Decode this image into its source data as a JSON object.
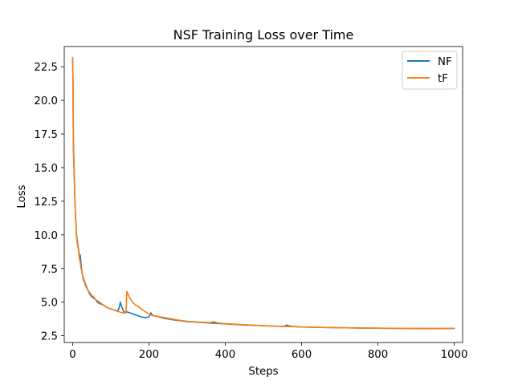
{
  "chart_data": {
    "type": "line",
    "title": "NSF Training Loss over Time",
    "xlabel": "Steps",
    "ylabel": "Loss",
    "xlim": [
      -22,
      1022
    ],
    "ylim": [
      2.0,
      24.0
    ],
    "x_ticks": [
      0,
      200,
      400,
      600,
      800,
      1000
    ],
    "y_ticks": [
      2.5,
      5.0,
      7.5,
      10.0,
      12.5,
      15.0,
      17.5,
      20.0,
      22.5
    ],
    "y_tick_labels": [
      "2.5",
      "5.0",
      "7.5",
      "10.0",
      "12.5",
      "15.0",
      "17.5",
      "20.0",
      "22.5"
    ],
    "grid": false,
    "legend_position": "top-right",
    "series": [
      {
        "name": "NF",
        "color": "#1f77b4",
        "points": [
          [
            0,
            23.1
          ],
          [
            1,
            21.0
          ],
          [
            2,
            16.4
          ],
          [
            4,
            14.5
          ],
          [
            6,
            12.5
          ],
          [
            8,
            11.2
          ],
          [
            10,
            10.1
          ],
          [
            12,
            9.6
          ],
          [
            15,
            9.0
          ],
          [
            18,
            8.4
          ],
          [
            20,
            8.5
          ],
          [
            22,
            7.8
          ],
          [
            25,
            7.1
          ],
          [
            28,
            6.8
          ],
          [
            32,
            6.4
          ],
          [
            36,
            6.1
          ],
          [
            40,
            5.9
          ],
          [
            45,
            5.6
          ],
          [
            50,
            5.4
          ],
          [
            55,
            5.3
          ],
          [
            60,
            5.2
          ],
          [
            65,
            5.0
          ],
          [
            70,
            4.9
          ],
          [
            80,
            4.8
          ],
          [
            90,
            4.6
          ],
          [
            100,
            4.5
          ],
          [
            110,
            4.4
          ],
          [
            118,
            4.3
          ],
          [
            122,
            4.6
          ],
          [
            125,
            5.0
          ],
          [
            128,
            4.7
          ],
          [
            132,
            4.4
          ],
          [
            136,
            4.2
          ],
          [
            140,
            4.3
          ],
          [
            150,
            4.2
          ],
          [
            160,
            4.1
          ],
          [
            170,
            4.0
          ],
          [
            180,
            3.9
          ],
          [
            190,
            3.85
          ],
          [
            200,
            3.9
          ],
          [
            205,
            4.2
          ],
          [
            210,
            4.0
          ],
          [
            220,
            3.95
          ],
          [
            240,
            3.8
          ],
          [
            260,
            3.7
          ],
          [
            280,
            3.62
          ],
          [
            300,
            3.55
          ],
          [
            330,
            3.5
          ],
          [
            360,
            3.45
          ],
          [
            400,
            3.38
          ],
          [
            450,
            3.3
          ],
          [
            500,
            3.25
          ],
          [
            540,
            3.2
          ],
          [
            555,
            3.18
          ],
          [
            560,
            3.3
          ],
          [
            565,
            3.25
          ],
          [
            575,
            3.2
          ],
          [
            600,
            3.15
          ],
          [
            650,
            3.12
          ],
          [
            700,
            3.1
          ],
          [
            750,
            3.08
          ],
          [
            800,
            3.06
          ],
          [
            850,
            3.05
          ],
          [
            900,
            3.04
          ],
          [
            950,
            3.04
          ],
          [
            1000,
            3.05
          ]
        ]
      },
      {
        "name": "tF",
        "color": "#ff7f0e",
        "points": [
          [
            0,
            23.2
          ],
          [
            1,
            21.5
          ],
          [
            2,
            17.0
          ],
          [
            4,
            14.8
          ],
          [
            6,
            12.8
          ],
          [
            8,
            11.0
          ],
          [
            10,
            9.9
          ],
          [
            12,
            9.4
          ],
          [
            15,
            8.9
          ],
          [
            18,
            8.2
          ],
          [
            20,
            7.9
          ],
          [
            22,
            7.5
          ],
          [
            25,
            7.2
          ],
          [
            28,
            6.6
          ],
          [
            32,
            6.5
          ],
          [
            36,
            6.2
          ],
          [
            40,
            5.9
          ],
          [
            45,
            5.7
          ],
          [
            50,
            5.5
          ],
          [
            55,
            5.4
          ],
          [
            60,
            5.2
          ],
          [
            65,
            5.1
          ],
          [
            70,
            5.0
          ],
          [
            80,
            4.8
          ],
          [
            90,
            4.6
          ],
          [
            100,
            4.5
          ],
          [
            110,
            4.4
          ],
          [
            120,
            4.3
          ],
          [
            130,
            4.2
          ],
          [
            140,
            4.2
          ],
          [
            142,
            5.8
          ],
          [
            145,
            5.6
          ],
          [
            150,
            5.3
          ],
          [
            160,
            4.9
          ],
          [
            170,
            4.7
          ],
          [
            180,
            4.5
          ],
          [
            190,
            4.3
          ],
          [
            200,
            4.1
          ],
          [
            210,
            4.0
          ],
          [
            220,
            3.95
          ],
          [
            240,
            3.85
          ],
          [
            260,
            3.75
          ],
          [
            280,
            3.65
          ],
          [
            300,
            3.58
          ],
          [
            330,
            3.52
          ],
          [
            360,
            3.48
          ],
          [
            370,
            3.55
          ],
          [
            380,
            3.45
          ],
          [
            400,
            3.4
          ],
          [
            450,
            3.32
          ],
          [
            500,
            3.25
          ],
          [
            550,
            3.2
          ],
          [
            600,
            3.15
          ],
          [
            650,
            3.12
          ],
          [
            700,
            3.1
          ],
          [
            750,
            3.08
          ],
          [
            800,
            3.06
          ],
          [
            850,
            3.05
          ],
          [
            900,
            3.05
          ],
          [
            950,
            3.04
          ],
          [
            1000,
            3.05
          ]
        ]
      }
    ]
  }
}
